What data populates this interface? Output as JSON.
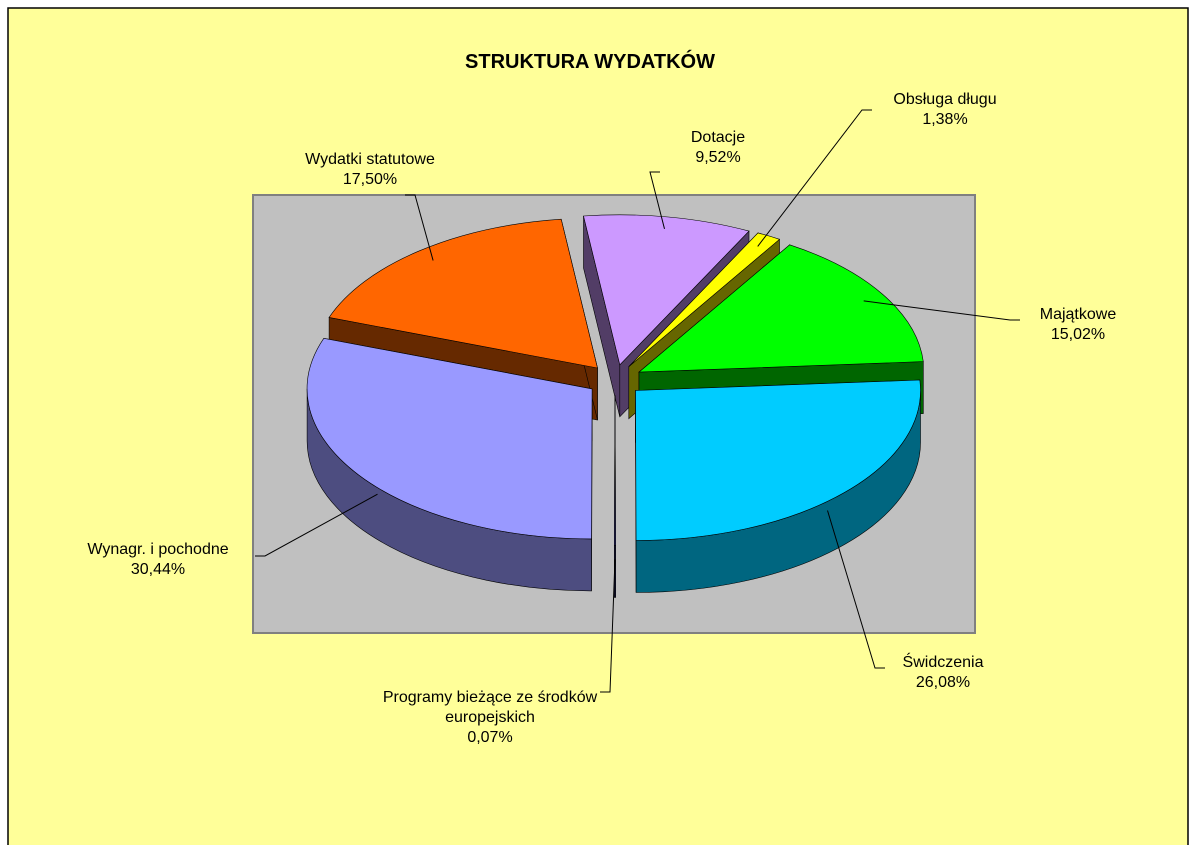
{
  "chart_data": {
    "type": "pie",
    "title": "STRUKTURA WYDATKÓW",
    "categories": [
      "Dotacje",
      "Obsługa długu",
      "Majątkowe",
      "Świdczenia",
      "Programy bieżące ze środków europejskich",
      "Wynagr. i pochodne",
      "Wydatki statutowe"
    ],
    "values": [
      9.52,
      1.38,
      15.02,
      26.08,
      0.07,
      30.44,
      17.5
    ],
    "value_labels": [
      "9,52%",
      "1,38%",
      "15,02%",
      "26,08%",
      "0,07%",
      "30,44%",
      "17,50%"
    ],
    "colors": [
      "#cc99ff",
      "#ffff00",
      "#00ff00",
      "#00ccff",
      "#333399",
      "#9999ff",
      "#ff6600"
    ]
  }
}
